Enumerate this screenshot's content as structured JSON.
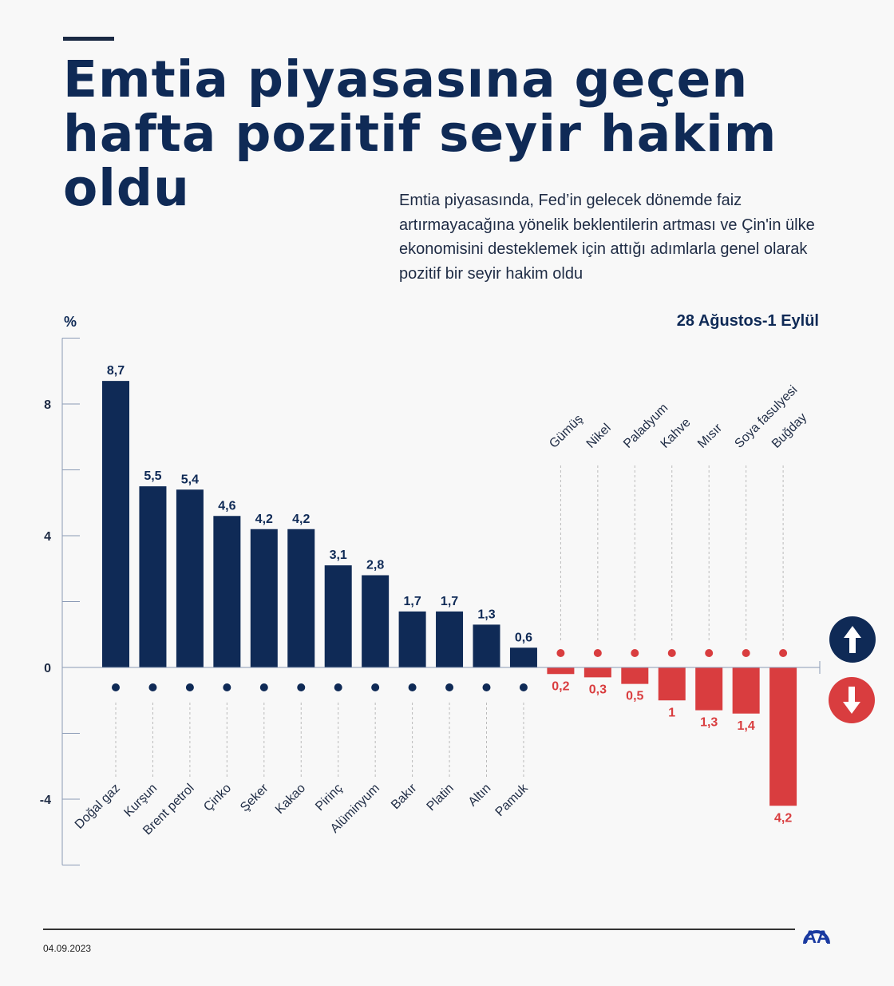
{
  "header": {
    "title": "Emtia piyasasına geçen hafta pozitif seyir hakim oldu",
    "subtitle": "Emtia piyasasında, Fed’in gelecek dönemde faiz artırmayacağına yönelik beklentilerin artması ve Çin'in ülke ekonomisini desteklemek için attığı adımlarla genel olarak pozitif bir seyir hakim oldu"
  },
  "footer": {
    "date": "04.09.2023",
    "logo": "AA"
  },
  "colors": {
    "up": "#0f2a56",
    "down": "#d93d3f",
    "axis": "#8a9ab5"
  },
  "chart_data": {
    "type": "bar",
    "title": "28 Ağustos-1 Eylül",
    "ylabel": "%",
    "ylim": [
      -6,
      10
    ],
    "yticks": [
      -6,
      -4,
      -2,
      0,
      2,
      4,
      6,
      8,
      10
    ],
    "ytick_labels": [
      "-4",
      "0",
      "4",
      "8"
    ],
    "ytick_label_values": [
      -4,
      0,
      4,
      8
    ],
    "categories": [
      "Doğal gaz",
      "Kurşun",
      "Brent petrol",
      "Çinko",
      "Şeker",
      "Kakao",
      "Pirinç",
      "Alüminyum",
      "Bakır",
      "Platin",
      "Altın",
      "Pamuk",
      "Gümüş",
      "Nikel",
      "Paladyum",
      "Kahve",
      "Mısır",
      "Soya fasulyesi",
      "Buğday"
    ],
    "values": [
      8.7,
      5.5,
      5.4,
      4.6,
      4.2,
      4.2,
      3.1,
      2.8,
      1.7,
      1.7,
      1.3,
      0.6,
      -0.2,
      -0.3,
      -0.5,
      -1,
      -1.3,
      -1.4,
      -4.2
    ],
    "value_labels": [
      "8,7",
      "5,5",
      "5,4",
      "4,6",
      "4,2",
      "4,2",
      "3,1",
      "2,8",
      "1,7",
      "1,7",
      "1,3",
      "0,6",
      "0,2",
      "0,3",
      "0,5",
      "1",
      "1,3",
      "1,4",
      "4,2"
    ],
    "icons": [
      "flame-icon",
      "metal-bars-icon",
      "oil-barrel-icon",
      "metal-bars-icon",
      "sugar-sack-icon",
      "cocoa-icon",
      "rice-sack-icon",
      "metal-bars-icon",
      "metal-bars-icon",
      "metal-bars-icon",
      "metal-bars-icon",
      "cotton-icon",
      "metal-bars-icon",
      "metal-bars-icon",
      "metal-bars-icon",
      "coffee-bean-icon",
      "corn-icon",
      "soybean-icon",
      "wheat-icon"
    ],
    "legend": {
      "up": "arrow-up-icon",
      "down": "arrow-down-icon"
    }
  }
}
